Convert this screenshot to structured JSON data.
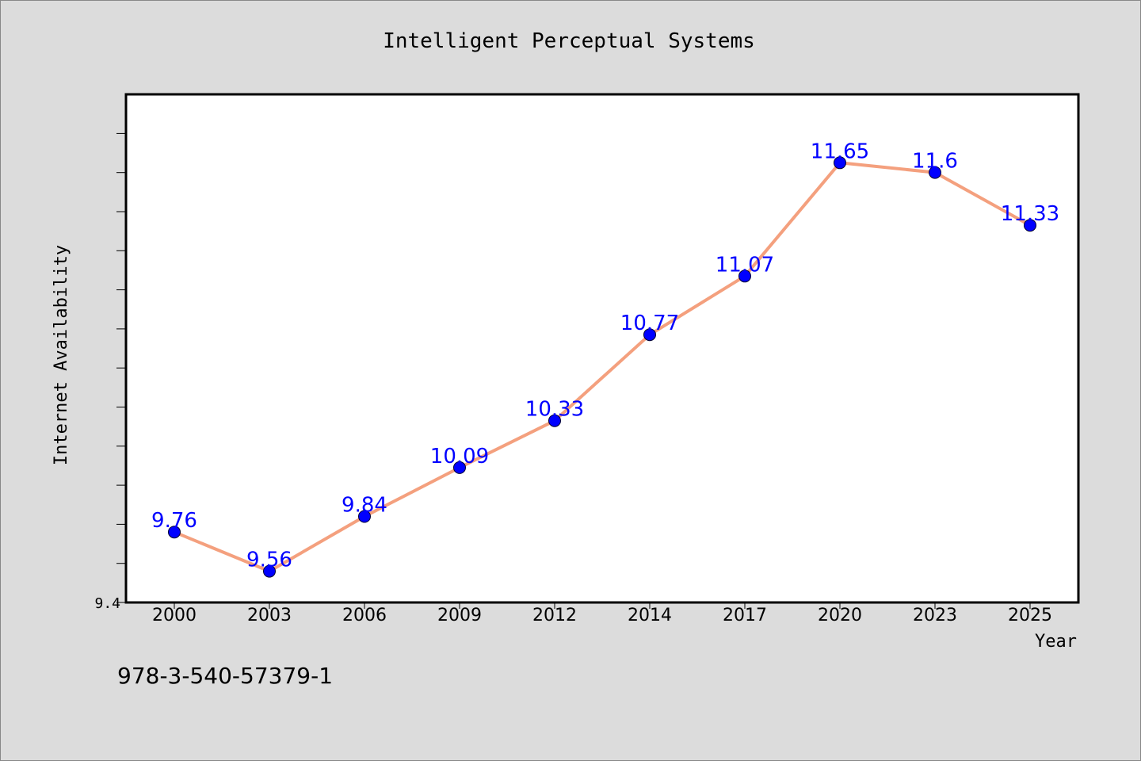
{
  "chart_data": {
    "type": "line",
    "title": "Intelligent Perceptual Systems",
    "xlabel": "Year",
    "ylabel": "Internet Availability",
    "categories": [
      "2000",
      "2003",
      "2006",
      "2009",
      "2012",
      "2014",
      "2017",
      "2020",
      "2023",
      "2025"
    ],
    "series": [
      {
        "values": [
          9.76,
          9.56,
          9.84,
          10.09,
          10.33,
          10.77,
          11.07,
          11.65,
          11.6,
          11.33
        ]
      }
    ],
    "data_labels": [
      "9.76",
      "9.56",
      "9.84",
      "10.09",
      "10.33",
      "10.77",
      "11.07",
      "11.65",
      "11.6",
      "11.33"
    ],
    "ylim": [
      9.4,
      12.0
    ],
    "ytick_labels": [
      "9.4"
    ],
    "grid": false,
    "line_color": "#f4a07e",
    "marker_color": "#0000ff",
    "label_color": "#0000ff",
    "background_color": "#dcdcdc",
    "plot_background_color": "#ffffff"
  },
  "footnote": "978-3-540-57379-1"
}
